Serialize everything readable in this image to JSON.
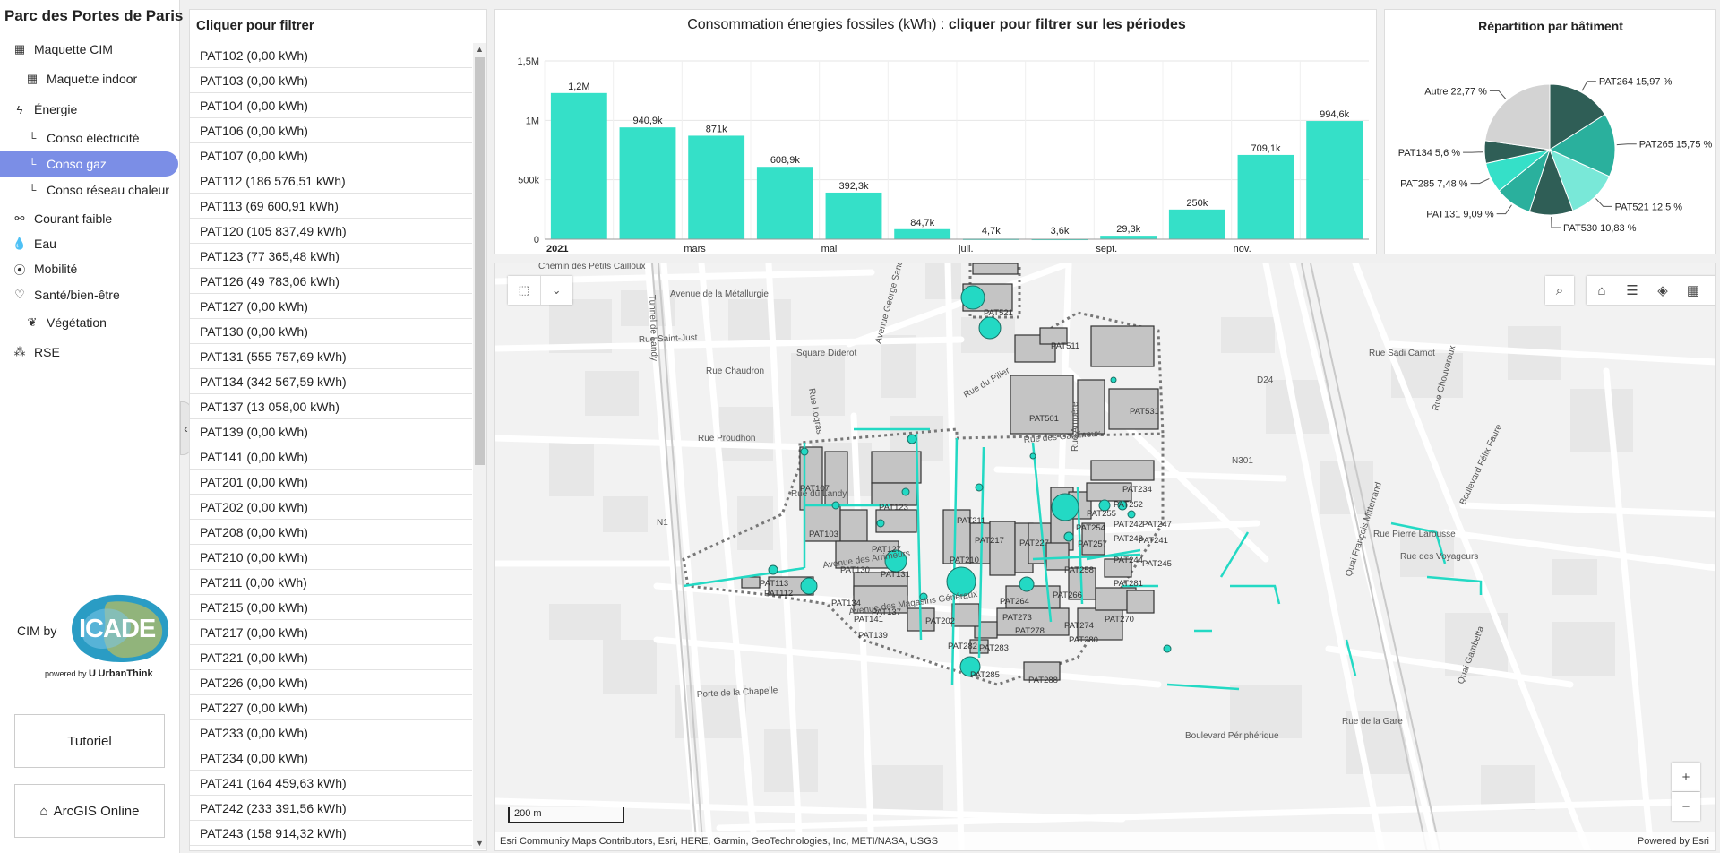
{
  "app": {
    "title": "Parc des Portes de Paris"
  },
  "nav": [
    {
      "label": "Maquette CIM",
      "icon": "building-icon",
      "glyph": "▦",
      "level": 0,
      "active": false
    },
    {
      "label": "Maquette indoor",
      "icon": "building-icon",
      "glyph": "▦",
      "level": 1,
      "active": false
    },
    {
      "label": "Énergie",
      "icon": "bolt-icon",
      "glyph": "ϟ",
      "level": 0,
      "active": false
    },
    {
      "label": "Conso éléctricité",
      "icon": "sub-item-icon",
      "glyph": "└",
      "level": 1,
      "active": false
    },
    {
      "label": "Conso gaz",
      "icon": "sub-item-icon",
      "glyph": "└",
      "level": 1,
      "active": true
    },
    {
      "label": "Conso réseau chaleur",
      "icon": "sub-item-icon",
      "glyph": "└",
      "level": 1,
      "active": false
    },
    {
      "label": "Courant faible",
      "icon": "network-icon",
      "glyph": "⚯",
      "level": 0,
      "active": false
    },
    {
      "label": "Eau",
      "icon": "drop-icon",
      "glyph": "💧",
      "level": 0,
      "active": false
    },
    {
      "label": "Mobilité",
      "icon": "pin-icon",
      "glyph": "⦿",
      "level": 0,
      "active": false
    },
    {
      "label": "Santé/bien-être",
      "icon": "heart-pulse-icon",
      "glyph": "♡",
      "level": 0,
      "active": false
    },
    {
      "label": "Végétation",
      "icon": "leaf-icon",
      "glyph": "❦",
      "level": 1,
      "active": false
    },
    {
      "label": "RSE",
      "icon": "people-icon",
      "glyph": "⁂",
      "level": 0,
      "active": false
    }
  ],
  "brand": {
    "prefix": "CIM by",
    "logo": "ICADE",
    "powered_prefix": "powered by",
    "powered_name": "UrbanThink"
  },
  "buttons": {
    "tutorial": "Tutoriel",
    "arcgis": "ArcGIS Online"
  },
  "filter": {
    "title": "Cliquer pour filtrer",
    "items": [
      "PAT102 (0,00 kWh)",
      "PAT103 (0,00 kWh)",
      "PAT104 (0,00 kWh)",
      "PAT106 (0,00 kWh)",
      "PAT107 (0,00 kWh)",
      "PAT112 (186 576,51 kWh)",
      "PAT113 (69 600,91 kWh)",
      "PAT120 (105 837,49 kWh)",
      "PAT123 (77 365,48 kWh)",
      "PAT126 (49 783,06 kWh)",
      "PAT127 (0,00 kWh)",
      "PAT130 (0,00 kWh)",
      "PAT131 (555 757,69 kWh)",
      "PAT134 (342 567,59 kWh)",
      "PAT137 (13 058,00 kWh)",
      "PAT139 (0,00 kWh)",
      "PAT141 (0,00 kWh)",
      "PAT201 (0,00 kWh)",
      "PAT202 (0,00 kWh)",
      "PAT208 (0,00 kWh)",
      "PAT210 (0,00 kWh)",
      "PAT211 (0,00 kWh)",
      "PAT215 (0,00 kWh)",
      "PAT217 (0,00 kWh)",
      "PAT221 (0,00 kWh)",
      "PAT226 (0,00 kWh)",
      "PAT227 (0,00 kWh)",
      "PAT233 (0,00 kWh)",
      "PAT234 (0,00 kWh)",
      "PAT241 (164 459,63 kWh)",
      "PAT242 (233 391,56 kWh)",
      "PAT243 (158 914,32 kWh)"
    ]
  },
  "chart_data": [
    {
      "type": "bar",
      "title_prefix": "Consommation énergies fossiles (kWh) : ",
      "title_emphasis": "cliquer pour filtrer sur les périodes",
      "categories": [
        "2021-01",
        "2021-02",
        "2021-03",
        "2021-04",
        "2021-05",
        "2021-06",
        "2021-07",
        "2021-08",
        "2021-09",
        "2021-10",
        "2021-11",
        "2021-12"
      ],
      "values": [
        1230000,
        940900,
        871000,
        608900,
        392300,
        84700,
        4700,
        3600,
        29300,
        250000,
        709100,
        994600
      ],
      "data_labels": [
        "1,2M",
        "940,9k",
        "871k",
        "608,9k",
        "392,3k",
        "84,7k",
        "4,7k",
        "3,6k",
        "29,3k",
        "250k",
        "709,1k",
        "994,6k"
      ],
      "x_tick_labels": [
        "2021",
        "",
        "mars",
        "",
        "mai",
        "",
        "juil.",
        "",
        "sept.",
        "",
        "nov.",
        ""
      ],
      "y_ticks": [
        0,
        500000,
        1000000,
        1500000
      ],
      "y_tick_labels": [
        "0",
        "500k",
        "1M",
        "1,5M"
      ],
      "ylim": [
        0,
        1500000
      ],
      "color": "#35e0c8",
      "grid": true
    },
    {
      "type": "pie",
      "title": "Répartition par bâtiment",
      "slices": [
        {
          "label": "PAT264 15,97 %",
          "value": 15.97,
          "color": "#2f5e56"
        },
        {
          "label": "PAT265 15,75 %",
          "value": 15.75,
          "color": "#2ab09d"
        },
        {
          "label": "PAT521 12,5 %",
          "value": 12.5,
          "color": "#79e8d8"
        },
        {
          "label": "PAT530 10,83 %",
          "value": 10.83,
          "color": "#2f5e56"
        },
        {
          "label": "PAT131 9,09 %",
          "value": 9.09,
          "color": "#2ab09d"
        },
        {
          "label": "PAT285 7,48 %",
          "value": 7.48,
          "color": "#35e0c8"
        },
        {
          "label": "PAT134 5,6 %",
          "value": 5.6,
          "color": "#2f5e56"
        },
        {
          "label": "Autre 22,77 %",
          "value": 22.77,
          "color": "#d3d3d3"
        }
      ]
    }
  ],
  "map": {
    "attribution": "Esri Community Maps Contributors, Esri, HERE, Garmin, GeoTechnologies, Inc, METI/NASA, USGS",
    "powered": "Powered by Esri",
    "scale": "200 m",
    "street_labels": [
      "Chemin des Petits Cailloux",
      "Avenue de la Métallurgie",
      "Rue Saint-Just",
      "Square Diderot",
      "Rue Chaudron",
      "Rue Proudhon",
      "Tunnel de Landy",
      "Rue du Pilier",
      "Rue des Gardinoux",
      "Avenue des Arrimeurs",
      "Avenue des Magasins Généraux",
      "Porte de la Chapelle",
      "Boulevard Périphérique",
      "Rue de la Gare",
      "Quai François Mitterrand",
      "Rue Sadi Carnot",
      "Rue Chouveroux",
      "Boulevard Félix Faure",
      "Rue Pierre Larousse",
      "Rue des Voyageurs",
      "Quai Gambetta",
      "Rue Ampère",
      "Avenue George Sand",
      "Rue du Landy",
      "Rue Logras",
      "N1",
      "N301",
      "D24"
    ],
    "building_labels": [
      "PAT521",
      "PAT511",
      "PAT501",
      "PAT531",
      "PAT107",
      "PAT123",
      "PAT103",
      "PAT127",
      "PAT130",
      "PAT131",
      "PAT113",
      "PAT112",
      "PAT134",
      "PAT137",
      "PAT141",
      "PAT139",
      "PAT202",
      "PAT211",
      "PAT217",
      "PAT210",
      "PAT227",
      "PAT264",
      "PAT266",
      "PAT273",
      "PAT278",
      "PAT274",
      "PAT280",
      "PAT270",
      "PAT282",
      "PAT283",
      "PAT285",
      "PAT288",
      "PAT234",
      "PAT252",
      "PAT255",
      "PAT242",
      "PAT247",
      "PAT241",
      "PAT243",
      "PAT244",
      "PAT245",
      "PAT281",
      "PAT258",
      "PAT254",
      "PAT257"
    ],
    "search_icon": "search-icon",
    "accent": "#23d9c4"
  }
}
